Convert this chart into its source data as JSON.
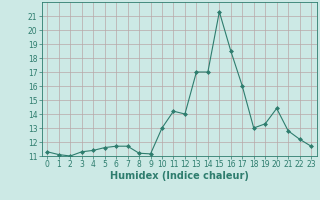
{
  "x": [
    0,
    1,
    2,
    3,
    4,
    5,
    6,
    7,
    8,
    9,
    10,
    11,
    12,
    13,
    14,
    15,
    16,
    17,
    18,
    19,
    20,
    21,
    22,
    23
  ],
  "y": [
    11.3,
    11.1,
    11.0,
    11.3,
    11.4,
    11.6,
    11.7,
    11.7,
    11.2,
    11.15,
    13.0,
    14.2,
    14.0,
    17.0,
    17.0,
    21.3,
    18.5,
    16.0,
    13.0,
    13.3,
    14.4,
    12.8,
    12.2,
    11.7
  ],
  "line_color": "#2e7d6e",
  "marker": "D",
  "marker_size": 2.0,
  "bg_color": "#cce9e5",
  "grid_color_major": "#b8a8a8",
  "grid_color_minor": "#d4c4c4",
  "xlabel": "Humidex (Indice chaleur)",
  "ylim": [
    11,
    22
  ],
  "xlim": [
    -0.5,
    23.5
  ],
  "yticks": [
    11,
    12,
    13,
    14,
    15,
    16,
    17,
    18,
    19,
    20,
    21
  ],
  "xticks": [
    0,
    1,
    2,
    3,
    4,
    5,
    6,
    7,
    8,
    9,
    10,
    11,
    12,
    13,
    14,
    15,
    16,
    17,
    18,
    19,
    20,
    21,
    22,
    23
  ],
  "tick_fontsize": 5.5,
  "xlabel_fontsize": 7.0,
  "line_width": 0.8
}
